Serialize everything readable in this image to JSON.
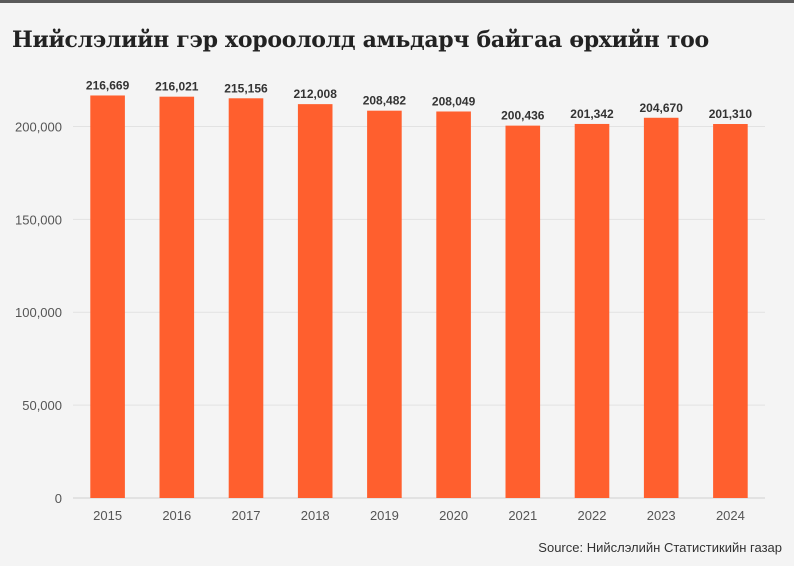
{
  "title": "Нийслэлийн гэр хороололд амьдарч байгаа өрхийн тоо",
  "source": "Source: Нийслэлийн Статистикийн газар",
  "colors": {
    "bar": "#ff5f2e",
    "grid": "#e2e2e2",
    "background": "#f4f4f4"
  },
  "chart_data": {
    "type": "bar",
    "title": "Нийслэлийн гэр хороололд амьдарч байгаа өрхийн тоо",
    "categories": [
      "2015",
      "2016",
      "2017",
      "2018",
      "2019",
      "2020",
      "2021",
      "2022",
      "2023",
      "2024"
    ],
    "values": [
      216669,
      216021,
      215156,
      212008,
      208482,
      208049,
      200436,
      201342,
      204670,
      201310
    ],
    "value_labels": [
      "216,669",
      "216,021",
      "215,156",
      "212,008",
      "208,482",
      "208,049",
      "200,436",
      "201,342",
      "204,670",
      "201,310"
    ],
    "yticks": [
      0,
      50000,
      100000,
      150000,
      200000
    ],
    "ytick_labels": [
      "0",
      "50,000",
      "100,000",
      "150,000",
      "200,000"
    ],
    "ylim": [
      0,
      225000
    ],
    "xlabel": "",
    "ylabel": "",
    "grid": true,
    "legend": "none"
  }
}
